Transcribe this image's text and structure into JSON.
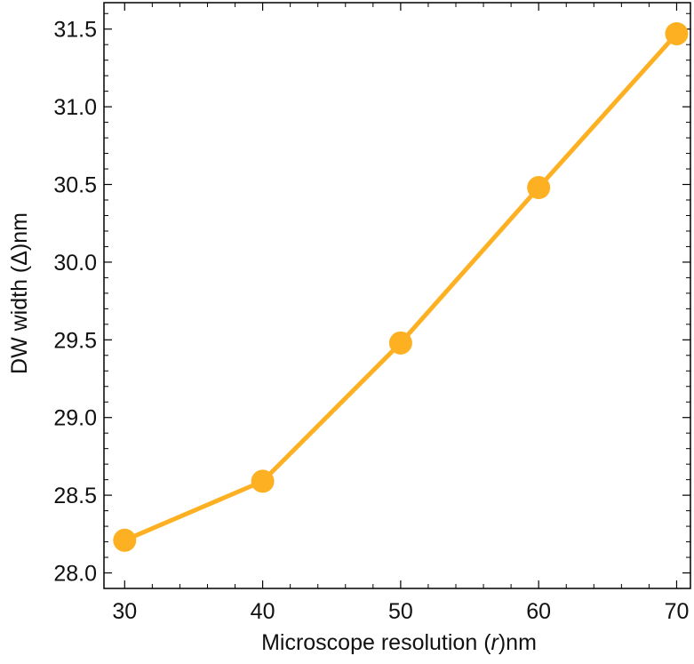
{
  "chart_data": {
    "type": "line",
    "title": "",
    "xlabel": "Microscope resolution (",
    "xlabel_var": "r",
    "xlabel_unit": ")nm",
    "ylabel": "DW width (Δ)nm",
    "x": [
      30,
      40,
      50,
      60,
      70
    ],
    "series": [
      {
        "values": [
          28.21,
          28.59,
          29.48,
          30.48,
          31.47
        ]
      }
    ],
    "xlim": [
      28.5,
      71
    ],
    "ylim": [
      27.9,
      31.67
    ],
    "xticks": [
      "30",
      "40",
      "50",
      "60",
      "70"
    ],
    "yticks": [
      "28.0",
      "28.5",
      "29.0",
      "29.5",
      "30.0",
      "30.5",
      "31.0",
      "31.5"
    ],
    "grid": false,
    "series_color": "#FDB022"
  }
}
